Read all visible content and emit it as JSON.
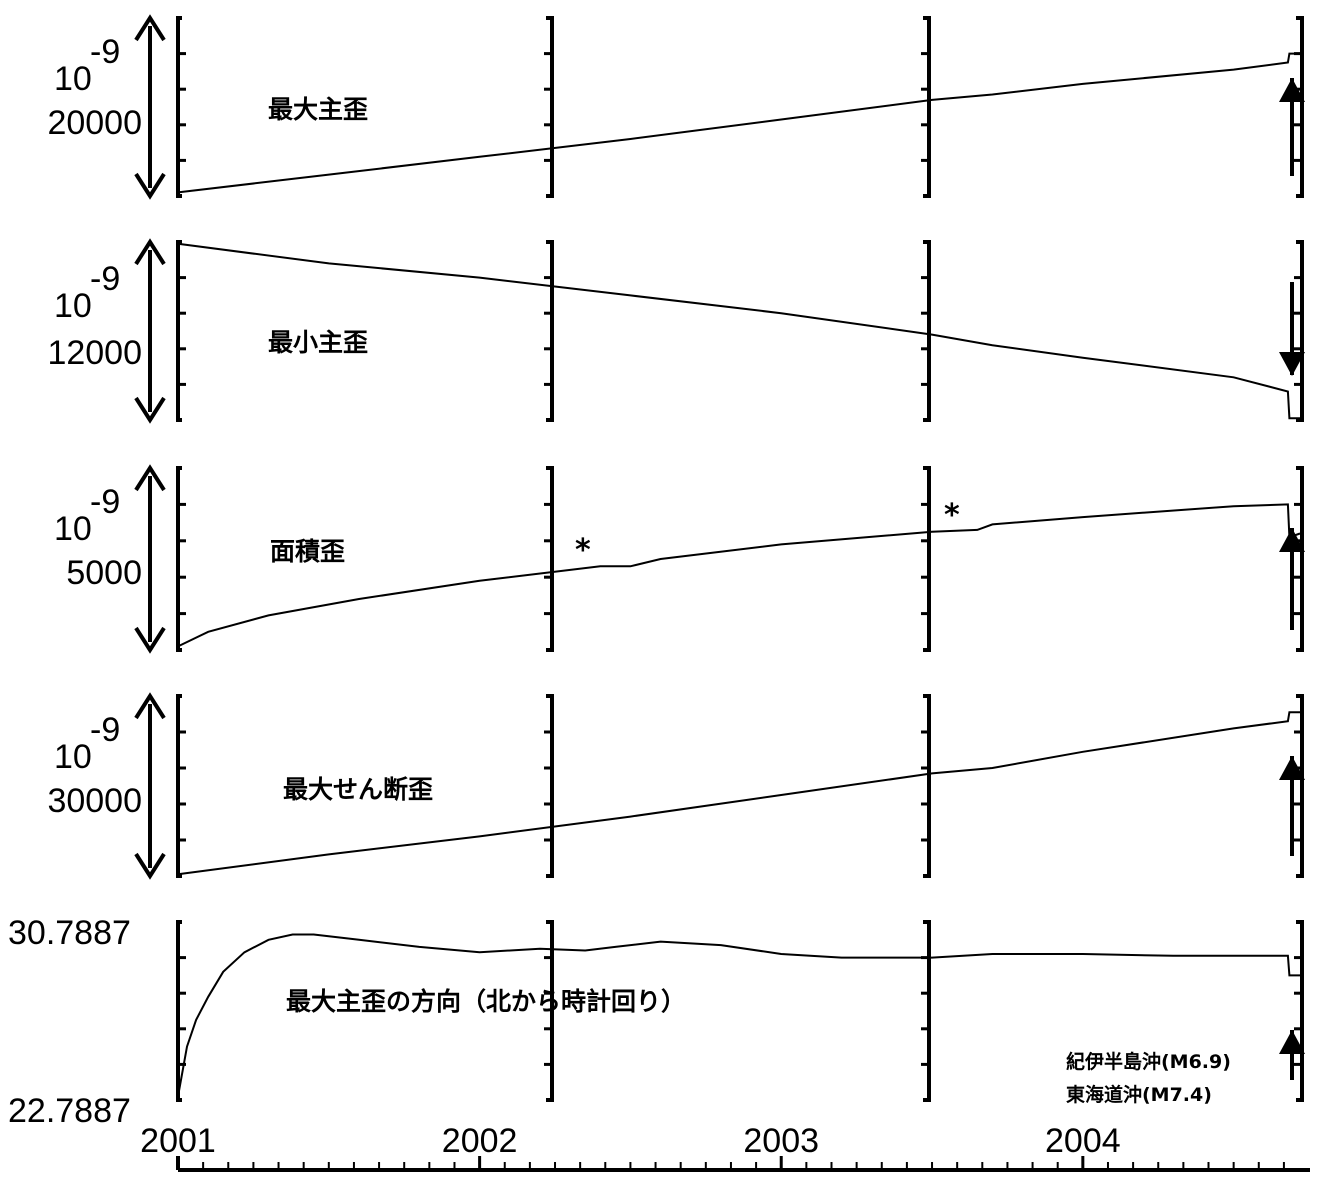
{
  "chart_data": {
    "type": "line",
    "x_axis": {
      "years": [
        "2001",
        "2002",
        "2003",
        "2004"
      ],
      "range": [
        2001.0,
        2004.72
      ]
    },
    "panels": [
      {
        "title": "最大主歪",
        "unit_exp": "10",
        "unit_sup": "-9",
        "scale_value": "20000",
        "scale_value2": "",
        "arrow": "up",
        "notes": [],
        "x": [
          2001.0,
          2001.5,
          2002.0,
          2002.5,
          2003.0,
          2003.5,
          2003.7,
          2004.0,
          2004.5,
          2004.68,
          2004.685,
          2004.72
        ],
        "y": [
          0.02,
          0.12,
          0.22,
          0.32,
          0.43,
          0.54,
          0.57,
          0.63,
          0.71,
          0.75,
          0.8,
          0.8
        ]
      },
      {
        "title": "最小主歪",
        "unit_exp": "10",
        "unit_sup": "-9",
        "scale_value": "12000",
        "scale_value2": "",
        "arrow": "down",
        "notes": [],
        "x": [
          2001.0,
          2001.5,
          2002.0,
          2002.5,
          2003.0,
          2003.5,
          2003.7,
          2004.0,
          2004.5,
          2004.68,
          2004.685,
          2004.72
        ],
        "y": [
          0.99,
          0.88,
          0.8,
          0.7,
          0.6,
          0.48,
          0.42,
          0.35,
          0.24,
          0.16,
          0.01,
          0.01
        ]
      },
      {
        "title": "面積歪",
        "unit_exp": "10",
        "unit_sup": "-9",
        "scale_value": "5000",
        "scale_value2": "",
        "arrow": "up",
        "notes": [
          "*",
          "*"
        ],
        "x": [
          2001.0,
          2001.1,
          2001.3,
          2001.6,
          2002.0,
          2002.4,
          2002.5,
          2002.6,
          2003.0,
          2003.5,
          2003.65,
          2003.7,
          2004.0,
          2004.5,
          2004.68,
          2004.685,
          2004.72
        ],
        "y": [
          0.02,
          0.1,
          0.19,
          0.28,
          0.38,
          0.46,
          0.46,
          0.5,
          0.58,
          0.65,
          0.66,
          0.69,
          0.73,
          0.79,
          0.8,
          0.62,
          0.64
        ]
      },
      {
        "title": "最大せん断歪",
        "unit_exp": "10",
        "unit_sup": "-9",
        "scale_value": "30000",
        "scale_value2": "",
        "arrow": "up",
        "notes": [],
        "x": [
          2001.0,
          2001.5,
          2002.0,
          2002.5,
          2003.0,
          2003.5,
          2003.7,
          2004.0,
          2004.5,
          2004.68,
          2004.685,
          2004.72
        ],
        "y": [
          0.01,
          0.12,
          0.22,
          0.33,
          0.45,
          0.57,
          0.6,
          0.69,
          0.82,
          0.86,
          0.91,
          0.91
        ]
      },
      {
        "title": "最大主歪の方向（北から時計回り）",
        "unit_exp": "",
        "unit_sup": "",
        "scale_value": "30.7887",
        "scale_value2": "22.7887",
        "arrow": "up",
        "notes": [],
        "events": [
          "紀伊半島沖(M6.9)",
          "東海道沖(M7.4)"
        ],
        "x": [
          2001.0,
          2001.03,
          2001.06,
          2001.1,
          2001.15,
          2001.22,
          2001.3,
          2001.38,
          2001.45,
          2001.5,
          2001.6,
          2001.8,
          2002.0,
          2002.2,
          2002.35,
          2002.45,
          2002.6,
          2002.8,
          2003.0,
          2003.2,
          2003.5,
          2003.7,
          2004.0,
          2004.3,
          2004.68,
          2004.685,
          2004.72
        ],
        "y": [
          0.02,
          0.3,
          0.45,
          0.58,
          0.72,
          0.83,
          0.9,
          0.93,
          0.93,
          0.92,
          0.9,
          0.86,
          0.83,
          0.85,
          0.84,
          0.86,
          0.89,
          0.87,
          0.82,
          0.8,
          0.8,
          0.82,
          0.82,
          0.81,
          0.81,
          0.7,
          0.7
        ]
      }
    ]
  }
}
